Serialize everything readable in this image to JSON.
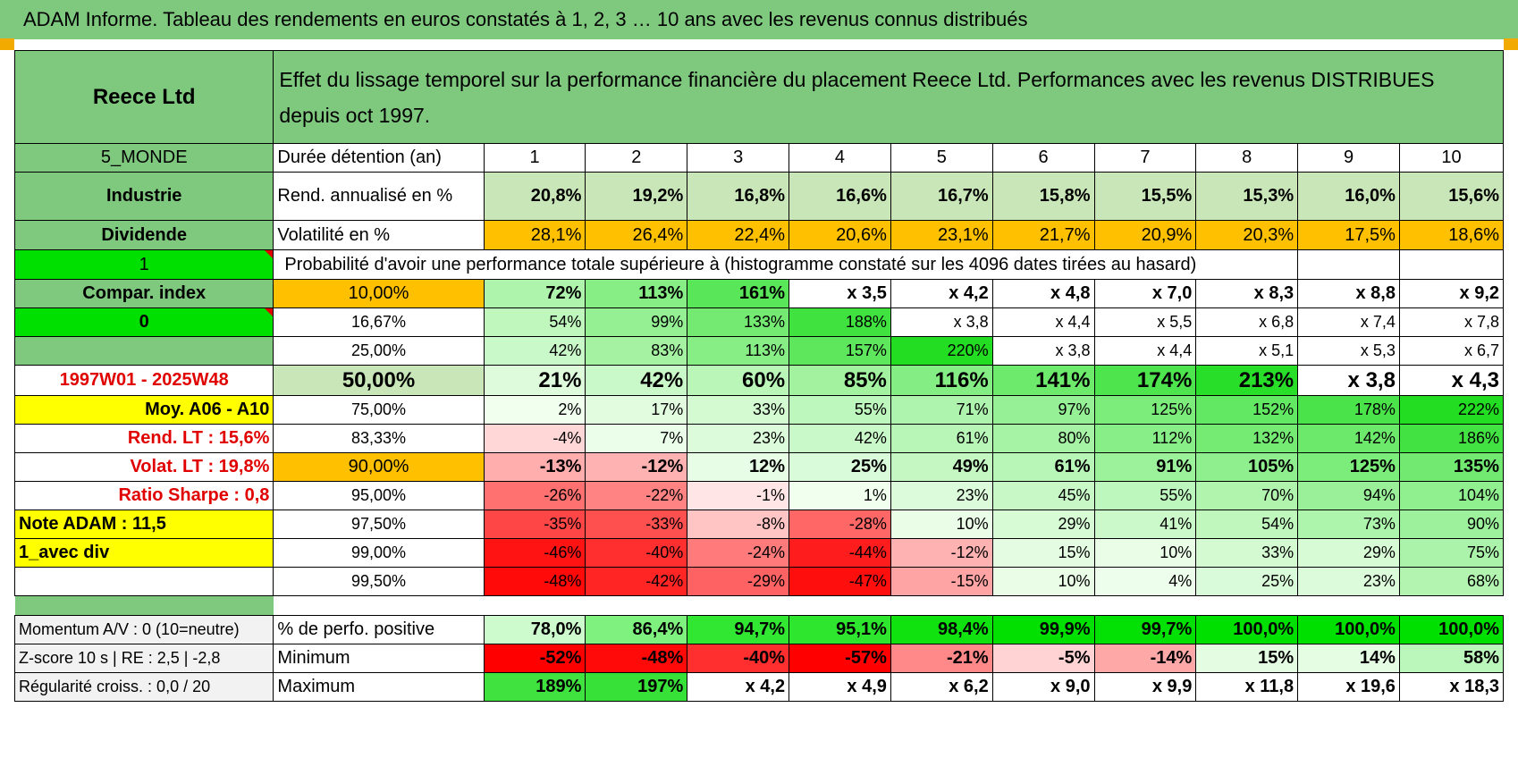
{
  "banner": "ADAM Informe. Tableau des rendements en euros constatés à 1, 2, 3 … 10 ans avec les revenus connus distribués",
  "sidebar": {
    "company": "Reece Ltd",
    "region": "5_MONDE",
    "sector": "Industrie",
    "payout": "Dividende",
    "flag1": "1",
    "compar": "Compar. index",
    "flag0": "0",
    "period": "1997W01 - 2025W48",
    "moy": "Moy. A06 - A10",
    "rend_lt": "Rend. LT :    15,6%",
    "volat_lt": "Volat. LT :    19,8%",
    "sharpe": "Ratio Sharpe :     0,8",
    "note": "Note ADAM : 11,5",
    "div": "1_avec div",
    "momentum": "Momentum A/V : 0 (10=neutre)",
    "zscore": "Z-score 10 s | RE : 2,5 | -2,8",
    "regularite": "Régularité croiss. : 0,0 / 20"
  },
  "header_text": "Effet du lissage temporel sur la performance financière du placement Reece Ltd. Performances avec les revenus DISTRIBUES depuis oct 1997.",
  "duree": {
    "label": "Durée détention (an)",
    "years": [
      "1",
      "2",
      "3",
      "4",
      "5",
      "6",
      "7",
      "8",
      "9",
      "10"
    ]
  },
  "rend": {
    "label": "Rend. annualisé en %",
    "values": [
      "20,8%",
      "19,2%",
      "16,8%",
      "16,6%",
      "16,7%",
      "15,8%",
      "15,5%",
      "15,3%",
      "16,0%",
      "15,6%"
    ]
  },
  "vol": {
    "label": "Volatilité en %",
    "values": [
      "28,1%",
      "26,4%",
      "22,4%",
      "20,6%",
      "23,1%",
      "21,7%",
      "20,9%",
      "20,3%",
      "17,5%",
      "18,6%"
    ]
  },
  "prob_title": "Probabilité d'avoir une performance totale supérieure à (histogramme constaté sur les 4096 dates tirées au hasard)",
  "prob_rows": [
    {
      "p": "10,00%",
      "v": [
        "72%",
        "113%",
        "161%",
        "x 3,5",
        "x 4,2",
        "x 4,8",
        "x 7,0",
        "x 8,3",
        "x 8,8",
        "x 9,2"
      ]
    },
    {
      "p": "16,67%",
      "v": [
        "54%",
        "99%",
        "133%",
        "188%",
        "x 3,8",
        "x 4,4",
        "x 5,5",
        "x 6,8",
        "x 7,4",
        "x 7,8"
      ]
    },
    {
      "p": "25,00%",
      "v": [
        "42%",
        "83%",
        "113%",
        "157%",
        "220%",
        "x 3,8",
        "x 4,4",
        "x 5,1",
        "x 5,3",
        "x 6,7"
      ]
    },
    {
      "p": "50,00%",
      "v": [
        "21%",
        "42%",
        "60%",
        "85%",
        "116%",
        "141%",
        "174%",
        "213%",
        "x 3,8",
        "x 4,3"
      ]
    },
    {
      "p": "75,00%",
      "v": [
        "2%",
        "17%",
        "33%",
        "55%",
        "71%",
        "97%",
        "125%",
        "152%",
        "178%",
        "222%"
      ]
    },
    {
      "p": "83,33%",
      "v": [
        "-4%",
        "7%",
        "23%",
        "42%",
        "61%",
        "80%",
        "112%",
        "132%",
        "142%",
        "186%"
      ]
    },
    {
      "p": "90,00%",
      "v": [
        "-13%",
        "-12%",
        "12%",
        "25%",
        "49%",
        "61%",
        "91%",
        "105%",
        "125%",
        "135%"
      ]
    },
    {
      "p": "95,00%",
      "v": [
        "-26%",
        "-22%",
        "-1%",
        "1%",
        "23%",
        "45%",
        "55%",
        "70%",
        "94%",
        "104%"
      ]
    },
    {
      "p": "97,50%",
      "v": [
        "-35%",
        "-33%",
        "-8%",
        "-28%",
        "10%",
        "29%",
        "41%",
        "54%",
        "73%",
        "90%"
      ]
    },
    {
      "p": "99,00%",
      "v": [
        "-46%",
        "-40%",
        "-24%",
        "-44%",
        "-12%",
        "15%",
        "10%",
        "33%",
        "29%",
        "75%"
      ]
    },
    {
      "p": "99,50%",
      "v": [
        "-48%",
        "-42%",
        "-29%",
        "-47%",
        "-15%",
        "10%",
        "4%",
        "25%",
        "23%",
        "68%"
      ]
    }
  ],
  "stats": {
    "positive": {
      "label": "% de perfo. positive",
      "values": [
        "78,0%",
        "86,4%",
        "94,7%",
        "95,1%",
        "98,4%",
        "99,9%",
        "99,7%",
        "100,0%",
        "100,0%",
        "100,0%"
      ]
    },
    "minimum": {
      "label": "Minimum",
      "values": [
        "-52%",
        "-48%",
        "-40%",
        "-57%",
        "-21%",
        "-5%",
        "-14%",
        "15%",
        "14%",
        "58%"
      ]
    },
    "maximum": {
      "label": "Maximum",
      "values": [
        "189%",
        "197%",
        "x 4,2",
        "x 4,9",
        "x 6,2",
        "x 9,0",
        "x 9,9",
        "x 11,8",
        "x 19,6",
        "x 18,3"
      ]
    }
  },
  "colors": {
    "header_green": "#7fc97f",
    "light_green": "#c8e6b8",
    "orange": "#ffc000",
    "yellow": "#ffff00",
    "bright_green": "#00e000",
    "label_red": "#e00000"
  }
}
